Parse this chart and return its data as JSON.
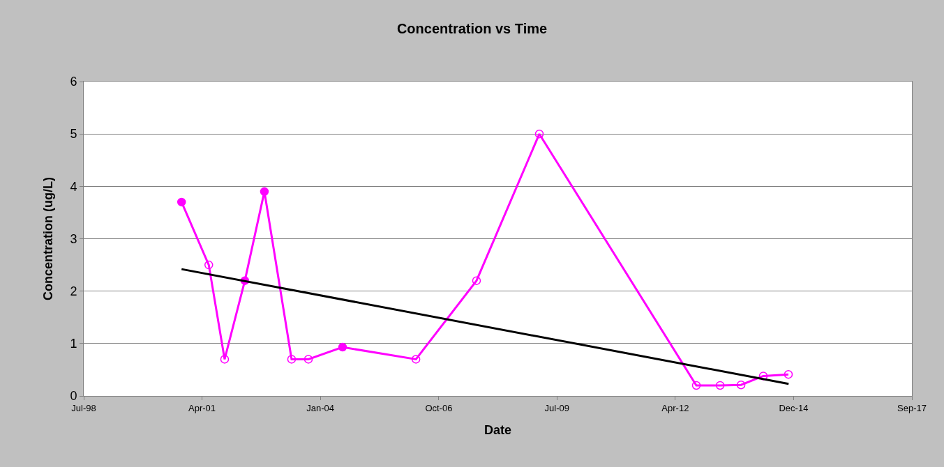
{
  "chart_data": {
    "type": "line",
    "title": "Concentration vs Time",
    "xlabel": "Date",
    "ylabel": "Concentration (ug/L)",
    "x": [
      "2000-10-28",
      "2001-06-15",
      "2001-10-27",
      "2002-04-16",
      "2002-09-28",
      "2003-05-16",
      "2003-10-05",
      "2004-07-20",
      "2006-04-01",
      "2007-08-26",
      "2009-02-07",
      "2012-09-26",
      "2013-04-15",
      "2013-10-09",
      "2014-04-15",
      "2014-11-13"
    ],
    "series": [
      {
        "color": "#ff00ff",
        "marker": "circle",
        "values": [
          3.7,
          2.5,
          0.7,
          2.2,
          3.9,
          0.7,
          0.7,
          0.93,
          0.7,
          2.2,
          5.0,
          0.2,
          0.2,
          0.21,
          0.38,
          0.41
        ]
      },
      {
        "type": "scatter",
        "color": "#ff00ff",
        "marker": "circle",
        "values": [
          3.7,
          null,
          null,
          2.2,
          3.9,
          null,
          null,
          0.93,
          null,
          null,
          null,
          null,
          null,
          null,
          null,
          null
        ]
      },
      {
        "color": "#000000",
        "marker": "none",
        "x": [
          "2000-10-28",
          "2014-11-15"
        ],
        "values": [
          2.42,
          0.23
        ]
      }
    ],
    "xlim": [
      "1998-07-24",
      "2017-09-22"
    ],
    "xticks": [
      {
        "value": "1998-07-24",
        "label": "Jul-98"
      },
      {
        "value": "2001-04-19",
        "label": "Apr-01"
      },
      {
        "value": "2004-01-14",
        "label": "Jan-04"
      },
      {
        "value": "2006-10-11",
        "label": "Oct-06"
      },
      {
        "value": "2009-07-06",
        "label": "Jul-09"
      },
      {
        "value": "2012-04-01",
        "label": "Apr-12"
      },
      {
        "value": "2014-12-27",
        "label": "Dec-14"
      },
      {
        "value": "2017-09-22",
        "label": "Sep-17"
      }
    ],
    "ylim": [
      0,
      6
    ],
    "yticks": [
      0,
      1,
      2,
      3,
      4,
      5,
      6
    ],
    "grid": "y"
  }
}
